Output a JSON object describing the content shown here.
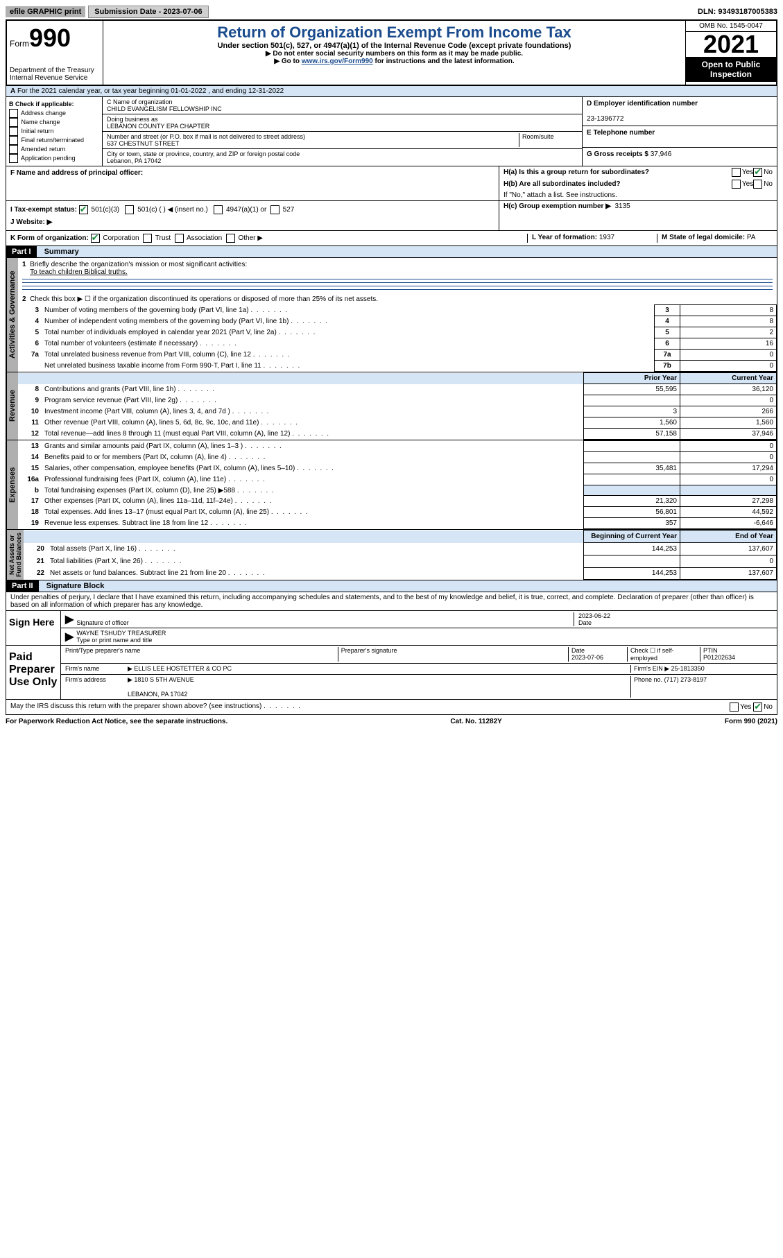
{
  "topbar": {
    "efile": "efile GRAPHIC print",
    "submission_label": "Submission Date - 2023-07-06",
    "dln": "DLN: 93493187005383"
  },
  "header": {
    "form_label": "Form",
    "form_num": "990",
    "dept": "Department of the Treasury",
    "irs": "Internal Revenue Service",
    "title": "Return of Organization Exempt From Income Tax",
    "subtitle": "Under section 501(c), 527, or 4947(a)(1) of the Internal Revenue Code (except private foundations)",
    "note1": "▶ Do not enter social security numbers on this form as it may be made public.",
    "note2_pre": "▶ Go to ",
    "note2_link": "www.irs.gov/Form990",
    "note2_post": " for instructions and the latest information.",
    "omb": "OMB No. 1545-0047",
    "year": "2021",
    "open": "Open to Public Inspection"
  },
  "line_a": "For the 2021 calendar year, or tax year beginning 01-01-2022 , and ending 12-31-2022",
  "box_b": {
    "label": "B Check if applicable:",
    "opts": [
      "Address change",
      "Name change",
      "Initial return",
      "Final return/terminated",
      "Amended return",
      "Application pending"
    ]
  },
  "box_c": {
    "name_label": "C Name of organization",
    "name": "CHILD EVANGELISM FELLOWSHIP INC",
    "dba_label": "Doing business as",
    "dba": "LEBANON COUNTY EPA CHAPTER",
    "addr_label": "Number and street (or P.O. box if mail is not delivered to street address)",
    "room_label": "Room/suite",
    "addr": "637 CHESTNUT STREET",
    "city_label": "City or town, state or province, country, and ZIP or foreign postal code",
    "city": "Lebanon, PA  17042"
  },
  "box_d": {
    "label": "D Employer identification number",
    "ein": "23-1396772",
    "e_label": "E Telephone number",
    "g_label": "G Gross receipts $",
    "g_val": "37,946"
  },
  "box_f": "F  Name and address of principal officer:",
  "box_h": {
    "ha": "H(a)  Is this a group return for subordinates?",
    "hb": "H(b)  Are all subordinates included?",
    "hb_note": "If \"No,\" attach a list. See instructions.",
    "hc": "H(c)  Group exemption number ▶",
    "hc_val": "3135"
  },
  "line_i": {
    "label": "I   Tax-exempt status:",
    "opts": [
      "501(c)(3)",
      "501(c) (   ) ◀ (insert no.)",
      "4947(a)(1) or",
      "527"
    ]
  },
  "line_j": "J   Website: ▶",
  "line_k": {
    "label": "K Form of organization:",
    "opts": [
      "Corporation",
      "Trust",
      "Association",
      "Other ▶"
    ]
  },
  "line_l": {
    "label": "L Year of formation:",
    "val": "1937"
  },
  "line_m": {
    "label": "M State of legal domicile:",
    "val": "PA"
  },
  "part1": {
    "header": "Part I",
    "title": "Summary",
    "q1": "Briefly describe the organization's mission or most significant activities:",
    "q1_ans": "To teach children Biblical truths.",
    "q2": "Check this box ▶ ☐  if the organization discontinued its operations or disposed of more than 25% of its net assets.",
    "rows_gov": [
      {
        "n": "3",
        "t": "Number of voting members of the governing body (Part VI, line 1a)",
        "l": "3",
        "v": "8"
      },
      {
        "n": "4",
        "t": "Number of independent voting members of the governing body (Part VI, line 1b)",
        "l": "4",
        "v": "8"
      },
      {
        "n": "5",
        "t": "Total number of individuals employed in calendar year 2021 (Part V, line 2a)",
        "l": "5",
        "v": "2"
      },
      {
        "n": "6",
        "t": "Total number of volunteers (estimate if necessary)",
        "l": "6",
        "v": "16"
      },
      {
        "n": "7a",
        "t": "Total unrelated business revenue from Part VIII, column (C), line 12",
        "l": "7a",
        "v": "0"
      },
      {
        "n": "",
        "t": "Net unrelated business taxable income from Form 990-T, Part I, line 11",
        "l": "7b",
        "v": "0"
      }
    ],
    "col_prior": "Prior Year",
    "col_current": "Current Year",
    "rows_rev": [
      {
        "n": "8",
        "t": "Contributions and grants (Part VIII, line 1h)",
        "p": "55,595",
        "c": "36,120"
      },
      {
        "n": "9",
        "t": "Program service revenue (Part VIII, line 2g)",
        "p": "",
        "c": "0"
      },
      {
        "n": "10",
        "t": "Investment income (Part VIII, column (A), lines 3, 4, and 7d )",
        "p": "3",
        "c": "266"
      },
      {
        "n": "11",
        "t": "Other revenue (Part VIII, column (A), lines 5, 6d, 8c, 9c, 10c, and 11e)",
        "p": "1,560",
        "c": "1,560"
      },
      {
        "n": "12",
        "t": "Total revenue—add lines 8 through 11 (must equal Part VIII, column (A), line 12)",
        "p": "57,158",
        "c": "37,946"
      }
    ],
    "rows_exp": [
      {
        "n": "13",
        "t": "Grants and similar amounts paid (Part IX, column (A), lines 1–3 )",
        "p": "",
        "c": "0"
      },
      {
        "n": "14",
        "t": "Benefits paid to or for members (Part IX, column (A), line 4)",
        "p": "",
        "c": "0"
      },
      {
        "n": "15",
        "t": "Salaries, other compensation, employee benefits (Part IX, column (A), lines 5–10)",
        "p": "35,481",
        "c": "17,294"
      },
      {
        "n": "16a",
        "t": "Professional fundraising fees (Part IX, column (A), line 11e)",
        "p": "",
        "c": "0"
      },
      {
        "n": "b",
        "t": "Total fundraising expenses (Part IX, column (D), line 25) ▶588",
        "p": "shade",
        "c": "shade"
      },
      {
        "n": "17",
        "t": "Other expenses (Part IX, column (A), lines 11a–11d, 11f–24e)",
        "p": "21,320",
        "c": "27,298"
      },
      {
        "n": "18",
        "t": "Total expenses. Add lines 13–17 (must equal Part IX, column (A), line 25)",
        "p": "56,801",
        "c": "44,592"
      },
      {
        "n": "19",
        "t": "Revenue less expenses. Subtract line 18 from line 12",
        "p": "357",
        "c": "-6,646"
      }
    ],
    "col_begin": "Beginning of Current Year",
    "col_end": "End of Year",
    "rows_net": [
      {
        "n": "20",
        "t": "Total assets (Part X, line 16)",
        "p": "144,253",
        "c": "137,607"
      },
      {
        "n": "21",
        "t": "Total liabilities (Part X, line 26)",
        "p": "",
        "c": "0"
      },
      {
        "n": "22",
        "t": "Net assets or fund balances. Subtract line 21 from line 20",
        "p": "144,253",
        "c": "137,607"
      }
    ]
  },
  "part2": {
    "header": "Part II",
    "title": "Signature Block",
    "penalty": "Under penalties of perjury, I declare that I have examined this return, including accompanying schedules and statements, and to the best of my knowledge and belief, it is true, correct, and complete. Declaration of preparer (other than officer) is based on all information of which preparer has any knowledge.",
    "sign_here": "Sign Here",
    "sig_officer": "Signature of officer",
    "sig_date": "Date",
    "sig_date_val": "2023-06-22",
    "officer_name": "WAYNE TSHUDY TREASURER",
    "type_name": "Type or print name and title",
    "paid": "Paid Preparer Use Only",
    "prep_name": "Print/Type preparer's name",
    "prep_sig": "Preparer's signature",
    "prep_date": "Date",
    "prep_date_val": "2023-07-06",
    "check_if": "Check ☐ if self-employed",
    "ptin": "PTIN",
    "ptin_val": "P01202634",
    "firm_name_l": "Firm's name",
    "firm_name": "▶ ELLIS LEE HOSTETTER & CO PC",
    "firm_ein_l": "Firm's EIN ▶",
    "firm_ein": "25-1813350",
    "firm_addr_l": "Firm's address",
    "firm_addr": "▶ 1810 S 5TH AVENUE",
    "firm_city": "LEBANON, PA  17042",
    "phone_l": "Phone no.",
    "phone": "(717) 273-8197",
    "may_irs": "May the IRS discuss this return with the preparer shown above? (see instructions)"
  },
  "footer": {
    "left": "For Paperwork Reduction Act Notice, see the separate instructions.",
    "mid": "Cat. No. 11282Y",
    "right": "Form 990 (2021)"
  }
}
